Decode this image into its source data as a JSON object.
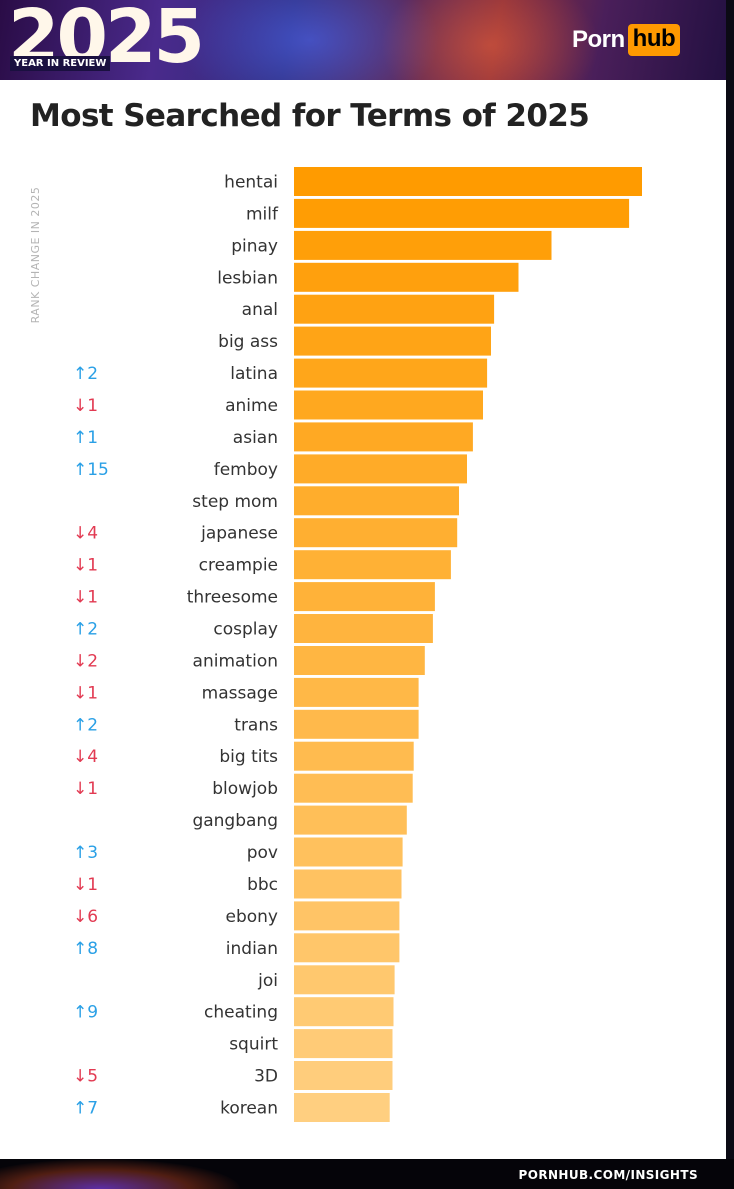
{
  "header": {
    "year": "2025",
    "subtitle": "YEAR IN REVIEW",
    "logo_part1": "Porn",
    "logo_part2": "hub",
    "accent": "#ff9900"
  },
  "footer": {
    "site": "PORNHUB.COM/INSIGHTS"
  },
  "chart_data": {
    "type": "bar",
    "orientation": "horizontal",
    "title": "Most Searched for Terms of 2025",
    "rank_change_label": "RANK CHANGE IN 2025",
    "categories": [
      "hentai",
      "milf",
      "pinay",
      "lesbian",
      "anal",
      "big ass",
      "latina",
      "anime",
      "asian",
      "femboy",
      "step mom",
      "japanese",
      "creampie",
      "threesome",
      "cosplay",
      "animation",
      "massage",
      "trans",
      "big tits",
      "blowjob",
      "gangbang",
      "pov",
      "bbc",
      "ebony",
      "indian",
      "joi",
      "cheating",
      "squirt",
      "3D",
      "korean"
    ],
    "values": [
      100,
      96.3,
      74,
      64.5,
      57.5,
      56.6,
      55.5,
      54.3,
      51.4,
      49.7,
      47.4,
      46.9,
      45.1,
      40.5,
      39.9,
      37.6,
      35.8,
      35.8,
      34.4,
      34.1,
      32.4,
      31.2,
      30.9,
      30.3,
      30.3,
      28.9,
      28.6,
      28.3,
      28.3,
      27.5
    ],
    "rank_changes": [
      "",
      "",
      "",
      "",
      "",
      "",
      "↑2",
      "↓1",
      "↑1",
      "↑15",
      "",
      "↓4",
      "↓1",
      "↓1",
      "↑2",
      "↓2",
      "↓1",
      "↑2",
      "↓4",
      "↓1",
      "",
      "↑3",
      "↓1",
      "↓6",
      "↑8",
      "",
      "↑9",
      "",
      "↓5",
      "↑7"
    ],
    "colors": {
      "bar_top": "#ff9b00",
      "bar_bottom": "#ffcf80",
      "up": "#2aa0e6",
      "down": "#e23a52",
      "label": "#333333"
    }
  }
}
